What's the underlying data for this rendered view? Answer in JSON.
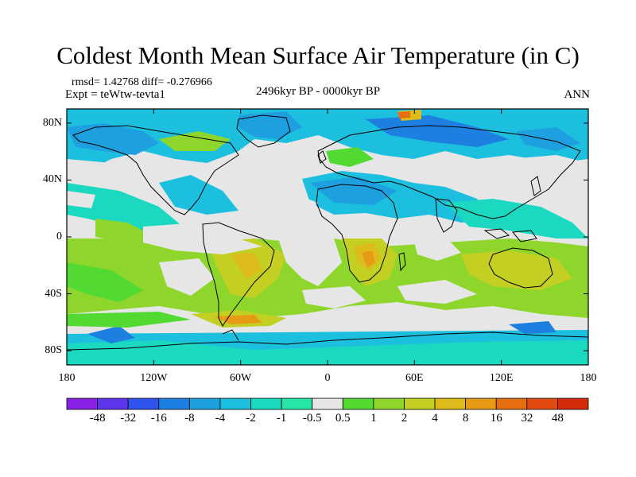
{
  "title": "Coldest Month Mean Surface Air Temperature (in C)",
  "stats": {
    "rmsd_text": "rmsd= 1.42768  diff= -0.276966"
  },
  "experiment": "Expt = teWtw-tevta1",
  "period": "2496kyr BP - 0000kyr BP",
  "season": "ANN",
  "axes": {
    "lat_labels": [
      "80N",
      "40N",
      "0",
      "40S",
      "80S"
    ],
    "lat_values": [
      80,
      40,
      0,
      -40,
      -80
    ],
    "lon_labels": [
      "180",
      "120W",
      "60W",
      "0",
      "60E",
      "120E",
      "180"
    ],
    "lon_values": [
      -180,
      -120,
      -60,
      0,
      60,
      120,
      180
    ]
  },
  "colorbar": {
    "labels": [
      "-48",
      "-32",
      "-16",
      "-8",
      "-4",
      "-2",
      "-1",
      "-0.5",
      "0.5",
      "1",
      "2",
      "4",
      "8",
      "16",
      "32",
      "48"
    ],
    "colors": [
      "#8a22e6",
      "#5f35ec",
      "#2f53ec",
      "#1d80e0",
      "#1d9fe0",
      "#1cc0de",
      "#1bd8c0",
      "#25e6a6",
      "#e6e6e6",
      "#52da32",
      "#8fd62c",
      "#c3cf22",
      "#dcbb1b",
      "#e79a16",
      "#e66e12",
      "#e24b10",
      "#d62a0c"
    ]
  },
  "colors": {
    "land_outline": "#000000",
    "no_change": "#e6e6e6",
    "cooling": "#1d9fe0",
    "warming": "#8fd62c"
  }
}
